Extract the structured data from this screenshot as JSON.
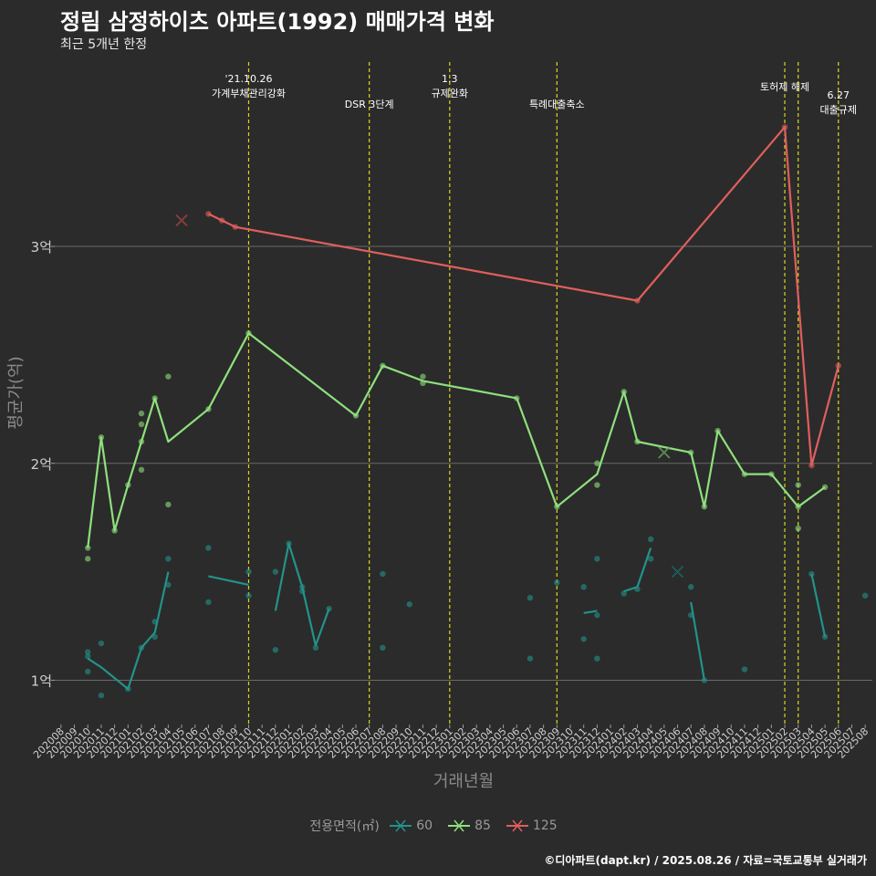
{
  "title": "정림 삼정하이츠 아파트(1992) 매매가격 변화",
  "subtitle": "최근 5개년 한정",
  "caption": "©디아파트(dapt.kr) / 2025.08.26 / 자료=국토교통부 실거래가",
  "colors": {
    "s60": "#22938a",
    "s85": "#8fe07d",
    "s125": "#e05f5c",
    "event": "#d8d820",
    "grid": "#6a6a6a",
    "bg": "#2b2b2b"
  },
  "chart_data": {
    "type": "line",
    "xlabel": "거래년월",
    "ylabel": "평균가(억)",
    "x_ticks": [
      "202008",
      "202009",
      "202010",
      "202011",
      "202012",
      "202101",
      "202102",
      "202103",
      "202104",
      "202105",
      "202106",
      "202107",
      "202108",
      "202109",
      "202110",
      "202111",
      "202112",
      "202201",
      "202202",
      "202203",
      "202204",
      "202205",
      "202206",
      "202207",
      "202208",
      "202209",
      "202210",
      "202211",
      "202212",
      "202301",
      "202302",
      "202303",
      "202304",
      "202305",
      "202306",
      "202307",
      "202308",
      "202309",
      "202310",
      "202311",
      "202312",
      "202401",
      "202402",
      "202403",
      "202404",
      "202405",
      "202406",
      "202407",
      "202408",
      "202409",
      "202410",
      "202411",
      "202412",
      "202501",
      "202502",
      "202503",
      "202504",
      "202505",
      "202506",
      "202507",
      "202508"
    ],
    "y_ticks": [
      {
        "value": 1,
        "label": "1억"
      },
      {
        "value": 2,
        "label": "2억"
      },
      {
        "value": 3,
        "label": "3억"
      }
    ],
    "ylim": [
      0.8,
      3.85
    ],
    "legend": {
      "title": "전용면적(㎡)",
      "position": "bottom"
    },
    "events": [
      {
        "x": "202110",
        "label": "'21.10.26\n가계부채관리강화"
      },
      {
        "x": "202207",
        "label": "DSR 3단계"
      },
      {
        "x": "202301",
        "label": "1.3\n규제완화"
      },
      {
        "x": "202309",
        "label": "특례대출축소"
      },
      {
        "x": "202502",
        "label": "토허제 해제"
      },
      {
        "x": "202503",
        "label": ""
      },
      {
        "x": "202506",
        "label": "6.27\n대출규제"
      }
    ],
    "series": [
      {
        "name": "60",
        "color": "#22938a",
        "line_segments": [
          [
            [
              "202010",
              1.1
            ],
            [
              "202011",
              1.06
            ],
            [
              "202101",
              0.96
            ],
            [
              "202102",
              1.15
            ],
            [
              "202103",
              1.22
            ],
            [
              "202104",
              1.5
            ]
          ],
          [
            [
              "202107",
              1.48
            ],
            [
              "202110",
              1.44
            ]
          ],
          [
            [
              "202112",
              1.32
            ],
            [
              "202201",
              1.63
            ],
            [
              "202202",
              1.43
            ],
            [
              "202203",
              1.16
            ],
            [
              "202204",
              1.33
            ]
          ],
          [
            [
              "202311",
              1.31
            ],
            [
              "202312",
              1.32
            ]
          ],
          [
            [
              "202402",
              1.41
            ],
            [
              "202403",
              1.43
            ],
            [
              "202404",
              1.61
            ]
          ],
          [
            [
              "202407",
              1.36
            ],
            [
              "202408",
              1.0
            ]
          ],
          [
            [
              "202504",
              1.49
            ],
            [
              "202505",
              1.2
            ]
          ]
        ],
        "points": [
          [
            "202010",
            1.13
          ],
          [
            "202010",
            1.11
          ],
          [
            "202010",
            1.04
          ],
          [
            "202011",
            1.17
          ],
          [
            "202011",
            0.93
          ],
          [
            "202101",
            0.96
          ],
          [
            "202102",
            1.15
          ],
          [
            "202103",
            1.27
          ],
          [
            "202103",
            1.2
          ],
          [
            "202104",
            1.56
          ],
          [
            "202104",
            1.44
          ],
          [
            "202107",
            1.61
          ],
          [
            "202107",
            1.36
          ],
          [
            "202110",
            1.5
          ],
          [
            "202110",
            1.39
          ],
          [
            "202112",
            1.5
          ],
          [
            "202112",
            1.14
          ],
          [
            "202201",
            1.63
          ],
          [
            "202202",
            1.43
          ],
          [
            "202202",
            1.41
          ],
          [
            "202203",
            1.15
          ],
          [
            "202204",
            1.33
          ],
          [
            "202208",
            1.49
          ],
          [
            "202208",
            1.15
          ],
          [
            "202210",
            1.35
          ],
          [
            "202307",
            1.38
          ],
          [
            "202307",
            1.1
          ],
          [
            "202309",
            1.45
          ],
          [
            "202311",
            1.43
          ],
          [
            "202311",
            1.19
          ],
          [
            "202312",
            1.56
          ],
          [
            "202312",
            1.3
          ],
          [
            "202312",
            1.1
          ],
          [
            "202402",
            1.4
          ],
          [
            "202403",
            1.42
          ],
          [
            "202404",
            1.65
          ],
          [
            "202404",
            1.56
          ],
          [
            "202407",
            1.43
          ],
          [
            "202407",
            1.3
          ],
          [
            "202408",
            1.0
          ],
          [
            "202411",
            1.05
          ],
          [
            "202504",
            1.49
          ],
          [
            "202505",
            1.2
          ],
          [
            "202508",
            1.39
          ]
        ],
        "crosses": [
          [
            "202406",
            1.5
          ]
        ]
      },
      {
        "name": "85",
        "color": "#8fe07d",
        "line_segments": [
          [
            [
              "202010",
              1.61
            ],
            [
              "202011",
              2.12
            ],
            [
              "202012",
              1.69
            ],
            [
              "202101",
              1.9
            ],
            [
              "202102",
              2.1
            ],
            [
              "202103",
              2.3
            ],
            [
              "202104",
              2.1
            ],
            [
              "202107",
              2.25
            ],
            [
              "202110",
              2.6
            ],
            [
              "202206",
              2.22
            ],
            [
              "202208",
              2.45
            ],
            [
              "202211",
              2.38
            ],
            [
              "202306",
              2.3
            ],
            [
              "202309",
              1.8
            ],
            [
              "202312",
              1.95
            ],
            [
              "202402",
              2.33
            ],
            [
              "202403",
              2.1
            ],
            [
              "202407",
              2.05
            ],
            [
              "202408",
              1.8
            ],
            [
              "202409",
              2.15
            ],
            [
              "202411",
              1.95
            ],
            [
              "202501",
              1.95
            ],
            [
              "202503",
              1.8
            ],
            [
              "202505",
              1.89
            ]
          ]
        ],
        "points": [
          [
            "202010",
            1.61
          ],
          [
            "202010",
            1.56
          ],
          [
            "202011",
            2.12
          ],
          [
            "202012",
            1.69
          ],
          [
            "202101",
            1.9
          ],
          [
            "202102",
            2.23
          ],
          [
            "202102",
            2.18
          ],
          [
            "202102",
            2.1
          ],
          [
            "202102",
            1.97
          ],
          [
            "202103",
            2.3
          ],
          [
            "202104",
            2.4
          ],
          [
            "202104",
            1.81
          ],
          [
            "202107",
            2.25
          ],
          [
            "202110",
            2.6
          ],
          [
            "202206",
            2.22
          ],
          [
            "202208",
            2.45
          ],
          [
            "202211",
            2.4
          ],
          [
            "202211",
            2.37
          ],
          [
            "202306",
            2.3
          ],
          [
            "202309",
            1.8
          ],
          [
            "202312",
            2.0
          ],
          [
            "202312",
            1.9
          ],
          [
            "202402",
            2.33
          ],
          [
            "202403",
            2.1
          ],
          [
            "202407",
            2.05
          ],
          [
            "202408",
            1.8
          ],
          [
            "202409",
            2.15
          ],
          [
            "202411",
            1.95
          ],
          [
            "202501",
            1.95
          ],
          [
            "202503",
            1.9
          ],
          [
            "202503",
            1.8
          ],
          [
            "202503",
            1.7
          ],
          [
            "202505",
            1.89
          ]
        ],
        "crosses": [
          [
            "202405",
            2.05
          ]
        ]
      },
      {
        "name": "125",
        "color": "#e05f5c",
        "line_segments": [
          [
            [
              "202107",
              3.15
            ],
            [
              "202108",
              3.12
            ],
            [
              "202109",
              3.09
            ],
            [
              "202403",
              2.75
            ],
            [
              "202502",
              3.55
            ],
            [
              "202504",
              1.99
            ],
            [
              "202506",
              2.45
            ]
          ]
        ],
        "points": [
          [
            "202107",
            3.15
          ],
          [
            "202108",
            3.12
          ],
          [
            "202109",
            3.09
          ],
          [
            "202403",
            2.75
          ],
          [
            "202502",
            3.55
          ],
          [
            "202504",
            1.99
          ],
          [
            "202506",
            2.45
          ]
        ],
        "crosses": [
          [
            "202105",
            3.12
          ]
        ]
      }
    ]
  }
}
